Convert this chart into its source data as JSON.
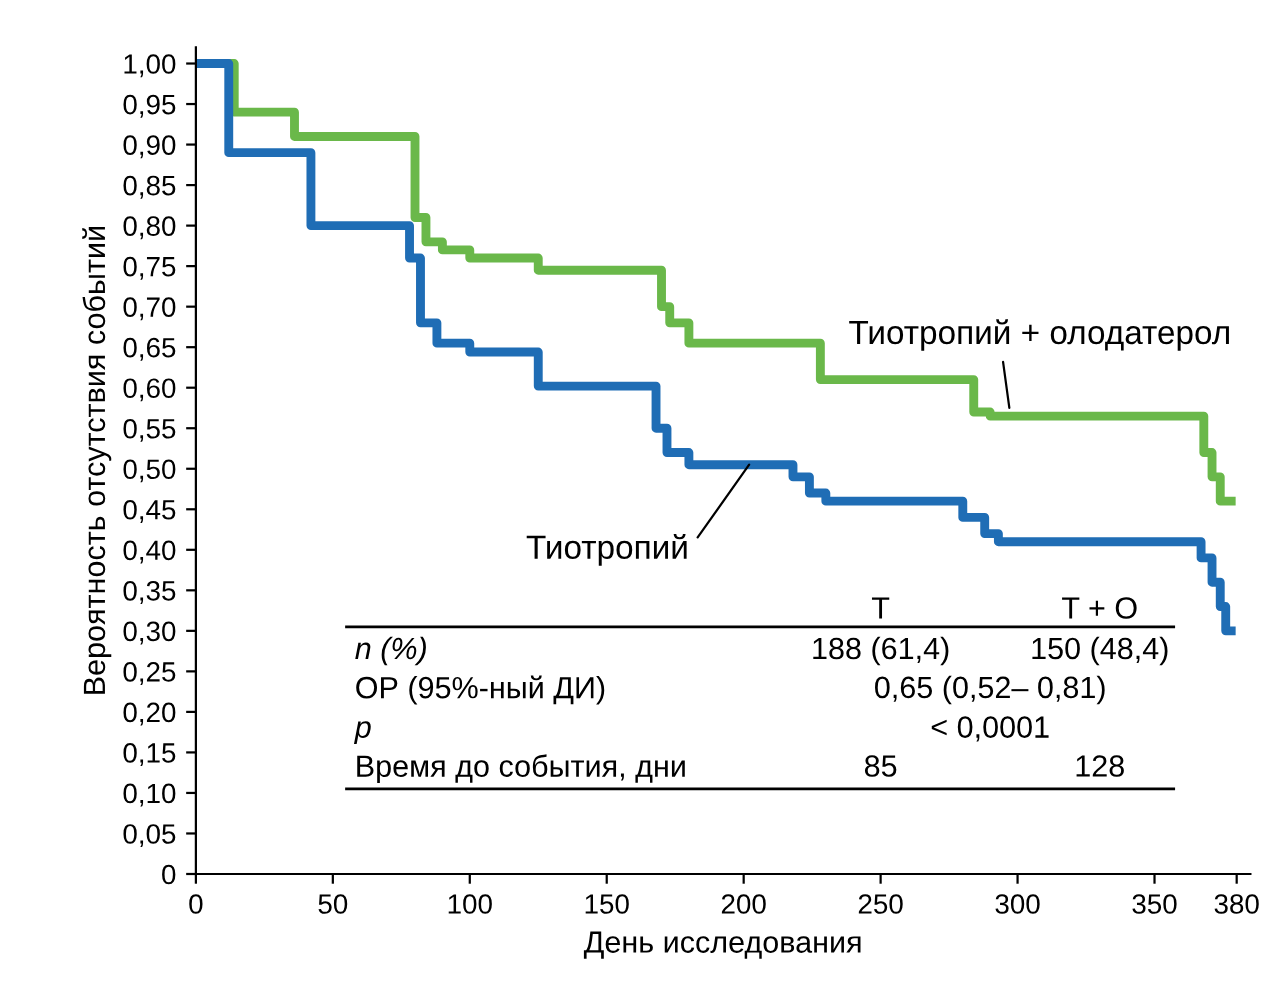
{
  "chart_data": {
    "type": "step",
    "xlabel": "День исследования",
    "ylabel": "Вероятность отсутствия событий",
    "xlim": [
      0,
      385
    ],
    "ylim": [
      0,
      1.02
    ],
    "xticks": [
      0,
      50,
      100,
      150,
      200,
      250,
      300,
      350,
      380
    ],
    "yticks": [
      {
        "value": 0,
        "label": "0"
      },
      {
        "value": 0.05,
        "label": "0,05"
      },
      {
        "value": 0.1,
        "label": "0,10"
      },
      {
        "value": 0.15,
        "label": "0,15"
      },
      {
        "value": 0.2,
        "label": "0,20"
      },
      {
        "value": 0.25,
        "label": "0,25"
      },
      {
        "value": 0.3,
        "label": "0,30"
      },
      {
        "value": 0.35,
        "label": "0,35"
      },
      {
        "value": 0.4,
        "label": "0,40"
      },
      {
        "value": 0.45,
        "label": "0,45"
      },
      {
        "value": 0.5,
        "label": "0,50"
      },
      {
        "value": 0.55,
        "label": "0,55"
      },
      {
        "value": 0.6,
        "label": "0,60"
      },
      {
        "value": 0.65,
        "label": "0,65"
      },
      {
        "value": 0.7,
        "label": "0,70"
      },
      {
        "value": 0.75,
        "label": "0,75"
      },
      {
        "value": 0.8,
        "label": "0,80"
      },
      {
        "value": 0.85,
        "label": "0,85"
      },
      {
        "value": 0.9,
        "label": "0,90"
      },
      {
        "value": 0.95,
        "label": "0,95"
      },
      {
        "value": 1.0,
        "label": "1,00"
      }
    ],
    "series": [
      {
        "name": "Тиотропий + олодатерол",
        "color": "#6ab84a",
        "x": [
          0,
          14,
          36,
          80,
          84,
          90,
          100,
          125,
          170,
          173,
          180,
          222,
          228,
          284,
          290,
          368,
          371,
          374,
          378
        ],
        "values": [
          1.0,
          0.94,
          0.91,
          0.81,
          0.78,
          0.77,
          0.76,
          0.745,
          0.7,
          0.68,
          0.655,
          0.655,
          0.61,
          0.57,
          0.565,
          0.52,
          0.49,
          0.46,
          0.46
        ]
      },
      {
        "name": "Тиотропий",
        "color": "#1f6db5",
        "x": [
          0,
          12,
          42,
          78,
          82,
          88,
          100,
          125,
          168,
          172,
          180,
          218,
          224,
          230,
          280,
          288,
          293,
          367,
          371,
          374,
          376,
          378
        ],
        "values": [
          1.0,
          0.89,
          0.8,
          0.76,
          0.68,
          0.655,
          0.644,
          0.602,
          0.55,
          0.52,
          0.505,
          0.49,
          0.47,
          0.46,
          0.44,
          0.42,
          0.41,
          0.39,
          0.36,
          0.33,
          0.3,
          0.3
        ]
      }
    ],
    "annotations": [
      "T",
      "T + O",
      "n (%)",
      "188 (61,4)",
      "150 (48,4)",
      "ОР (95%-ный ДИ)",
      "0,65 (0,52– 0,81)",
      "p",
      "< 0,0001",
      "Время до события, дни",
      "85",
      "128"
    ],
    "grid": false,
    "legend": false
  }
}
